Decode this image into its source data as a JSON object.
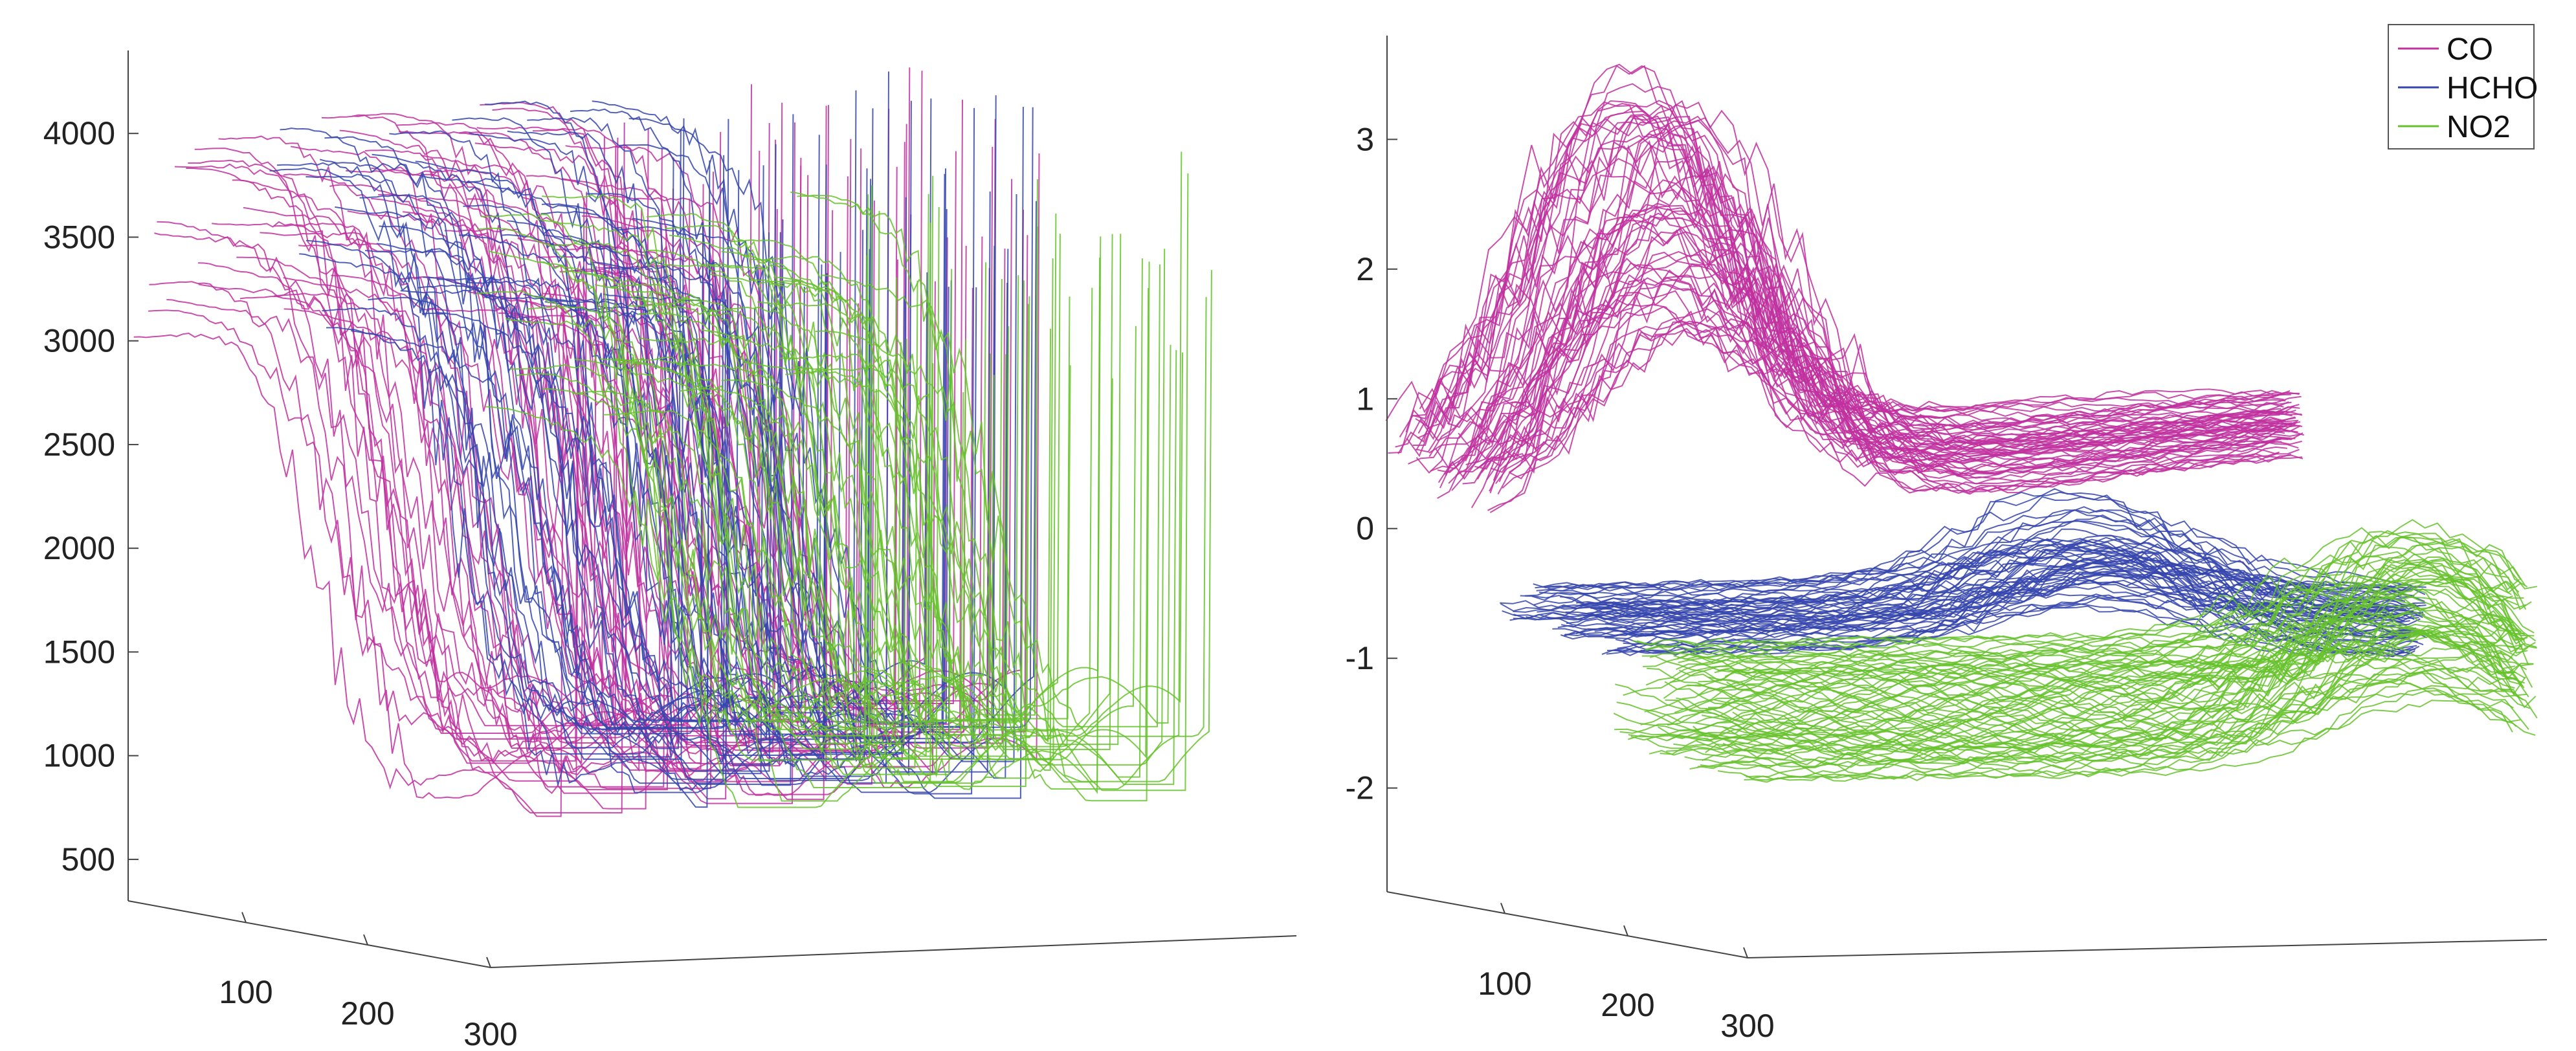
{
  "chart_data": [
    {
      "type": "line",
      "projection": "3d",
      "z_ticks": [
        "500",
        "1000",
        "1500",
        "2000",
        "2500",
        "3000",
        "3500",
        "4000"
      ],
      "zlim": [
        300,
        4400
      ],
      "depth_ticks": [
        "100",
        "200",
        "300"
      ],
      "grid": false,
      "legend": false,
      "series": [
        {
          "key": "CO",
          "color": "#c0309f"
        },
        {
          "key": "HCHO",
          "color": "#3545ad"
        },
        {
          "key": "NO2",
          "color": "#66c22c"
        }
      ]
    },
    {
      "type": "line",
      "projection": "3d",
      "z_ticks": [
        "-2",
        "-1",
        "0",
        "1",
        "2",
        "3"
      ],
      "zlim": [
        -2.8,
        3.8
      ],
      "depth_ticks": [
        "100",
        "200",
        "300"
      ],
      "grid": false,
      "legend": true,
      "legend_placement": "top-right",
      "series": [
        {
          "name": "CO",
          "color": "#c0309f"
        },
        {
          "name": "HCHO",
          "color": "#3545ad"
        },
        {
          "name": "NO2",
          "color": "#66c22c"
        }
      ]
    }
  ]
}
